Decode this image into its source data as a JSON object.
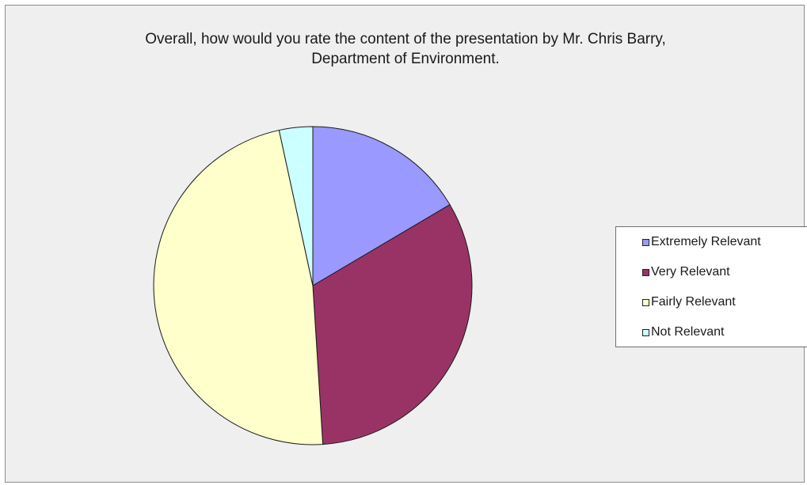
{
  "chart_data": {
    "type": "pie",
    "title": "Overall, how would you rate the content of the presentation by Mr. Chris Barry, Department of Environment.",
    "title_lines": [
      "Overall, how would you rate the content of the presentation by Mr. Chris Barry,",
      "Department of Environment."
    ],
    "categories": [
      "Extremely Relevant",
      "Very Relevant",
      "Fairly Relevant",
      "Not Relevant"
    ],
    "values": [
      16.5,
      32.5,
      47.6,
      3.4
    ],
    "colors": [
      "#9999ff",
      "#993366",
      "#ffffcc",
      "#ccffff"
    ],
    "legend_position": "right",
    "start_angle": "top, clockwise"
  }
}
